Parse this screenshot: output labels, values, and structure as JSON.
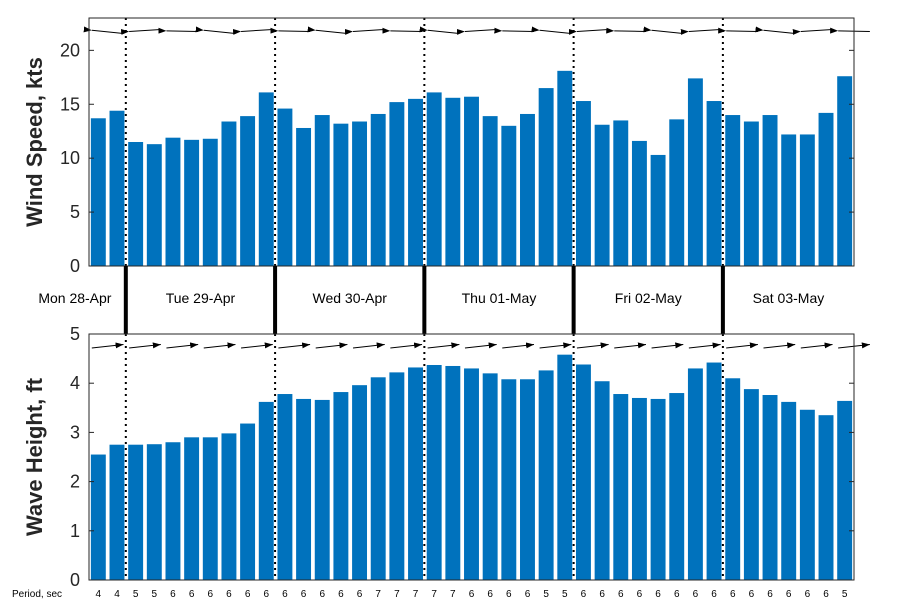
{
  "chart_data": [
    {
      "type": "bar",
      "ylabel": "Wind Speed, kts",
      "ylim": [
        0,
        23
      ],
      "yticks": [
        0,
        5,
        10,
        15,
        20
      ],
      "bar_color": "#0072bd",
      "values": [
        13.7,
        14.4,
        11.5,
        11.3,
        11.9,
        11.7,
        11.8,
        13.4,
        13.9,
        16.1,
        14.6,
        12.8,
        14.0,
        13.2,
        13.4,
        14.1,
        15.2,
        15.5,
        16.1,
        15.6,
        15.7,
        13.9,
        13.0,
        14.1,
        16.5,
        18.1,
        15.3,
        13.1,
        13.5,
        11.6,
        10.3,
        13.6,
        17.4,
        15.3,
        14.0,
        13.4,
        14.0,
        12.2,
        12.2,
        14.2,
        17.6
      ],
      "direction_arrows": "pointing-left",
      "grid": false
    },
    {
      "type": "bar",
      "ylabel": "Wave Height, ft",
      "ylim": [
        0,
        5
      ],
      "yticks": [
        0,
        1,
        2,
        3,
        4,
        5
      ],
      "bar_color": "#0072bd",
      "values": [
        2.55,
        2.75,
        2.75,
        2.76,
        2.8,
        2.9,
        2.9,
        2.98,
        3.18,
        3.62,
        3.78,
        3.68,
        3.66,
        3.82,
        3.96,
        4.12,
        4.22,
        4.32,
        4.37,
        4.35,
        4.3,
        4.2,
        4.08,
        4.08,
        4.26,
        4.58,
        4.38,
        4.04,
        3.78,
        3.7,
        3.68,
        3.8,
        4.3,
        4.42,
        4.1,
        3.88,
        3.76,
        3.62,
        3.46,
        3.35,
        3.64
      ],
      "direction_arrows": "pointing-right",
      "grid": false
    }
  ],
  "days": [
    "Mon 28-Apr",
    "Tue 29-Apr",
    "Wed 30-Apr",
    "Thu 01-May",
    "Fri 02-May",
    "Sat 03-May"
  ],
  "period_label": "Period, sec",
  "periods": [
    4,
    4,
    5,
    5,
    6,
    6,
    6,
    6,
    6,
    6,
    6,
    6,
    6,
    6,
    6,
    7,
    7,
    7,
    7,
    7,
    6,
    6,
    6,
    6,
    5,
    5,
    6,
    6,
    6,
    6,
    6,
    6,
    6,
    6,
    6,
    6,
    6,
    6,
    6,
    6,
    5
  ]
}
